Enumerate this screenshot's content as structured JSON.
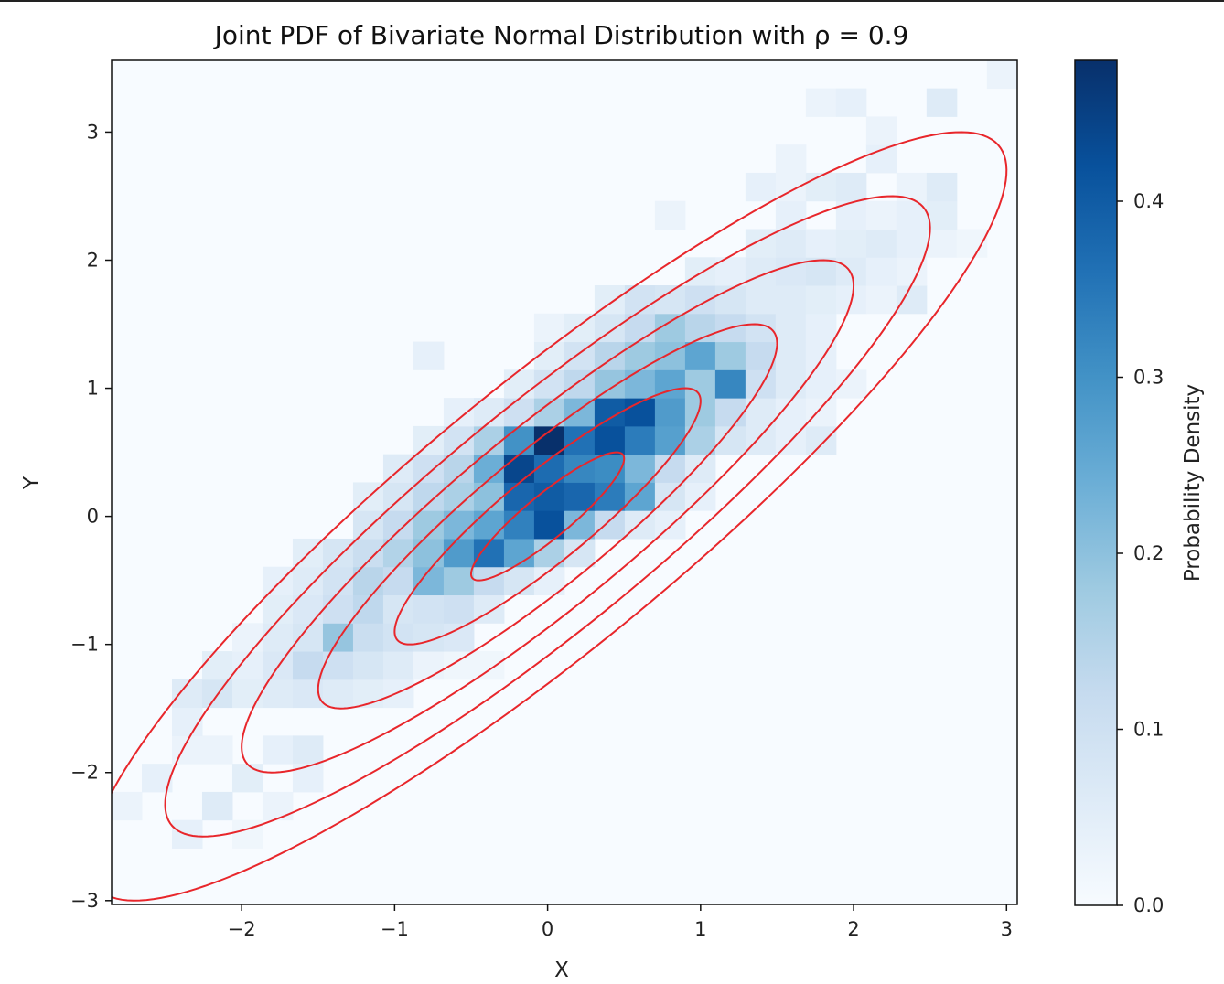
{
  "chart_data": {
    "type": "heatmap",
    "title": "Joint PDF of Bivariate Normal Distribution with ρ = 0.9",
    "xlabel": "X",
    "ylabel": "Y",
    "xlim": [
      -2.85,
      3.07
    ],
    "ylim": [
      -3.03,
      3.56
    ],
    "xticks": [
      -2,
      -1,
      0,
      1,
      2,
      3
    ],
    "xtick_labels": [
      "−2",
      "−1",
      "0",
      "1",
      "2",
      "3"
    ],
    "yticks": [
      -3,
      -2,
      -1,
      0,
      1,
      2,
      3
    ],
    "ytick_labels": [
      "−3",
      "−2",
      "−1",
      "0",
      "1",
      "2",
      "3"
    ],
    "grid": false,
    "histogram": {
      "bins": 30,
      "x_edges_start": -2.85,
      "x_bin_width": 0.1973,
      "y_edges_start": -3.03,
      "y_bin_width": 0.2197,
      "cells": [
        [
          0,
          3,
          0.03
        ],
        [
          1,
          4,
          0.04
        ],
        [
          2,
          2,
          0.04
        ],
        [
          3,
          3,
          0.06
        ],
        [
          4,
          2,
          0.02
        ],
        [
          2,
          5,
          0.03
        ],
        [
          3,
          5,
          0.03
        ],
        [
          2,
          6,
          0.04
        ],
        [
          4,
          4,
          0.05
        ],
        [
          5,
          3,
          0.03
        ],
        [
          5,
          5,
          0.04
        ],
        [
          6,
          5,
          0.06
        ],
        [
          6,
          4,
          0.04
        ],
        [
          2,
          7,
          0.06
        ],
        [
          3,
          7,
          0.08
        ],
        [
          4,
          7,
          0.05
        ],
        [
          5,
          7,
          0.06
        ],
        [
          6,
          7,
          0.07
        ],
        [
          7,
          7,
          0.06
        ],
        [
          8,
          7,
          0.05
        ],
        [
          9,
          7,
          0.04
        ],
        [
          3,
          8,
          0.05
        ],
        [
          4,
          8,
          0.04
        ],
        [
          5,
          8,
          0.07
        ],
        [
          6,
          8,
          0.12
        ],
        [
          7,
          8,
          0.1
        ],
        [
          8,
          8,
          0.08
        ],
        [
          9,
          8,
          0.06
        ],
        [
          10,
          8,
          0.03
        ],
        [
          11,
          8,
          0.02
        ],
        [
          12,
          8,
          0.02
        ],
        [
          4,
          9,
          0.03
        ],
        [
          5,
          9,
          0.06
        ],
        [
          6,
          9,
          0.08
        ],
        [
          7,
          9,
          0.19
        ],
        [
          8,
          9,
          0.11
        ],
        [
          9,
          9,
          0.09
        ],
        [
          10,
          9,
          0.08
        ],
        [
          11,
          9,
          0.07
        ],
        [
          5,
          10,
          0.05
        ],
        [
          6,
          10,
          0.07
        ],
        [
          7,
          10,
          0.1
        ],
        [
          8,
          10,
          0.13
        ],
        [
          9,
          10,
          0.08
        ],
        [
          10,
          10,
          0.09
        ],
        [
          11,
          10,
          0.1
        ],
        [
          12,
          10,
          0.06
        ],
        [
          5,
          11,
          0.04
        ],
        [
          6,
          11,
          0.06
        ],
        [
          7,
          11,
          0.09
        ],
        [
          8,
          11,
          0.14
        ],
        [
          9,
          11,
          0.12
        ],
        [
          10,
          11,
          0.22
        ],
        [
          11,
          11,
          0.18
        ],
        [
          12,
          11,
          0.12
        ],
        [
          13,
          11,
          0.08
        ],
        [
          14,
          11,
          0.04
        ],
        [
          6,
          12,
          0.05
        ],
        [
          7,
          12,
          0.08
        ],
        [
          8,
          12,
          0.11
        ],
        [
          9,
          12,
          0.15
        ],
        [
          10,
          12,
          0.2
        ],
        [
          11,
          12,
          0.28
        ],
        [
          12,
          12,
          0.36
        ],
        [
          13,
          12,
          0.26
        ],
        [
          14,
          12,
          0.16
        ],
        [
          15,
          12,
          0.08
        ],
        [
          8,
          13,
          0.08
        ],
        [
          9,
          13,
          0.12
        ],
        [
          10,
          13,
          0.18
        ],
        [
          11,
          13,
          0.22
        ],
        [
          12,
          13,
          0.26
        ],
        [
          13,
          13,
          0.33
        ],
        [
          14,
          13,
          0.42
        ],
        [
          15,
          13,
          0.22
        ],
        [
          16,
          13,
          0.12
        ],
        [
          17,
          13,
          0.06
        ],
        [
          18,
          13,
          0.04
        ],
        [
          8,
          14,
          0.05
        ],
        [
          9,
          14,
          0.08
        ],
        [
          10,
          14,
          0.13
        ],
        [
          11,
          14,
          0.16
        ],
        [
          12,
          14,
          0.2
        ],
        [
          13,
          14,
          0.38
        ],
        [
          14,
          14,
          0.4
        ],
        [
          15,
          14,
          0.38
        ],
        [
          16,
          14,
          0.34
        ],
        [
          17,
          14,
          0.26
        ],
        [
          18,
          14,
          0.08
        ],
        [
          19,
          14,
          0.04
        ],
        [
          9,
          15,
          0.06
        ],
        [
          10,
          15,
          0.1
        ],
        [
          11,
          15,
          0.14
        ],
        [
          12,
          15,
          0.24
        ],
        [
          13,
          15,
          0.44
        ],
        [
          14,
          15,
          0.37
        ],
        [
          15,
          15,
          0.32
        ],
        [
          16,
          15,
          0.31
        ],
        [
          17,
          15,
          0.22
        ],
        [
          18,
          15,
          0.12
        ],
        [
          19,
          15,
          0.06
        ],
        [
          10,
          16,
          0.05
        ],
        [
          11,
          16,
          0.09
        ],
        [
          12,
          16,
          0.16
        ],
        [
          13,
          16,
          0.3
        ],
        [
          14,
          16,
          0.48
        ],
        [
          15,
          16,
          0.36
        ],
        [
          16,
          16,
          0.42
        ],
        [
          17,
          16,
          0.34
        ],
        [
          18,
          16,
          0.27
        ],
        [
          19,
          16,
          0.16
        ],
        [
          20,
          16,
          0.08
        ],
        [
          21,
          16,
          0.06
        ],
        [
          22,
          16,
          0.04
        ],
        [
          23,
          16,
          0.06
        ],
        [
          11,
          17,
          0.04
        ],
        [
          12,
          17,
          0.06
        ],
        [
          13,
          17,
          0.1
        ],
        [
          14,
          17,
          0.16
        ],
        [
          15,
          17,
          0.22
        ],
        [
          16,
          17,
          0.4
        ],
        [
          17,
          17,
          0.42
        ],
        [
          18,
          17,
          0.28
        ],
        [
          19,
          17,
          0.18
        ],
        [
          20,
          17,
          0.12
        ],
        [
          21,
          17,
          0.06
        ],
        [
          22,
          17,
          0.04
        ],
        [
          23,
          17,
          0.03
        ],
        [
          13,
          18,
          0.05
        ],
        [
          14,
          18,
          0.09
        ],
        [
          15,
          18,
          0.13
        ],
        [
          16,
          18,
          0.19
        ],
        [
          17,
          18,
          0.22
        ],
        [
          18,
          18,
          0.26
        ],
        [
          19,
          18,
          0.18
        ],
        [
          20,
          18,
          0.32
        ],
        [
          21,
          18,
          0.1
        ],
        [
          22,
          18,
          0.06
        ],
        [
          23,
          18,
          0.04
        ],
        [
          24,
          18,
          0.03
        ],
        [
          10,
          19,
          0.04
        ],
        [
          14,
          19,
          0.05
        ],
        [
          15,
          19,
          0.09
        ],
        [
          16,
          19,
          0.14
        ],
        [
          17,
          19,
          0.18
        ],
        [
          18,
          19,
          0.2
        ],
        [
          19,
          19,
          0.26
        ],
        [
          20,
          19,
          0.18
        ],
        [
          21,
          19,
          0.12
        ],
        [
          22,
          19,
          0.06
        ],
        [
          23,
          19,
          0.04
        ],
        [
          14,
          20,
          0.03
        ],
        [
          15,
          20,
          0.05
        ],
        [
          16,
          20,
          0.08
        ],
        [
          17,
          20,
          0.12
        ],
        [
          18,
          20,
          0.18
        ],
        [
          19,
          20,
          0.14
        ],
        [
          20,
          20,
          0.12
        ],
        [
          21,
          20,
          0.09
        ],
        [
          22,
          20,
          0.06
        ],
        [
          23,
          20,
          0.04
        ],
        [
          16,
          21,
          0.05
        ],
        [
          17,
          21,
          0.09
        ],
        [
          18,
          21,
          0.08
        ],
        [
          19,
          21,
          0.1
        ],
        [
          20,
          21,
          0.08
        ],
        [
          21,
          21,
          0.06
        ],
        [
          22,
          21,
          0.06
        ],
        [
          23,
          21,
          0.05
        ],
        [
          24,
          21,
          0.04
        ],
        [
          25,
          21,
          0.03
        ],
        [
          26,
          21,
          0.06
        ],
        [
          19,
          22,
          0.05
        ],
        [
          20,
          22,
          0.04
        ],
        [
          21,
          22,
          0.06
        ],
        [
          22,
          22,
          0.07
        ],
        [
          23,
          22,
          0.08
        ],
        [
          24,
          22,
          0.06
        ],
        [
          25,
          22,
          0.04
        ],
        [
          26,
          22,
          0.03
        ],
        [
          21,
          23,
          0.05
        ],
        [
          22,
          23,
          0.06
        ],
        [
          23,
          23,
          0.04
        ],
        [
          24,
          23,
          0.05
        ],
        [
          25,
          23,
          0.06
        ],
        [
          26,
          23,
          0.04
        ],
        [
          27,
          23,
          0.03
        ],
        [
          28,
          23,
          0.02
        ],
        [
          18,
          24,
          0.03
        ],
        [
          22,
          24,
          0.04
        ],
        [
          24,
          24,
          0.04
        ],
        [
          25,
          24,
          0.03
        ],
        [
          26,
          24,
          0.04
        ],
        [
          27,
          24,
          0.05
        ],
        [
          21,
          25,
          0.04
        ],
        [
          22,
          25,
          0.03
        ],
        [
          23,
          25,
          0.05
        ],
        [
          24,
          25,
          0.06
        ],
        [
          26,
          25,
          0.03
        ],
        [
          27,
          25,
          0.06
        ],
        [
          22,
          26,
          0.03
        ],
        [
          25,
          26,
          0.04
        ],
        [
          25,
          27,
          0.03
        ],
        [
          23,
          28,
          0.03
        ],
        [
          24,
          28,
          0.04
        ],
        [
          27,
          28,
          0.06
        ],
        [
          29,
          29,
          0.03
        ]
      ]
    },
    "contours": {
      "color": "#e8262b",
      "distribution": {
        "mean": [
          0,
          0
        ],
        "rho": 0.9
      },
      "mahalanobis_levels": [
        0.5,
        1.0,
        1.5,
        2.0,
        2.5,
        3.0
      ]
    },
    "colorbar": {
      "label": "Probability Density",
      "vmin": 0.0,
      "vmax": 0.48,
      "ticks": [
        0.0,
        0.1,
        0.2,
        0.3,
        0.4
      ],
      "tick_labels": [
        "0.0",
        "0.1",
        "0.2",
        "0.3",
        "0.4"
      ],
      "colormap": "Blues",
      "colors": [
        "#f7fbff",
        "#deebf7",
        "#c6dbef",
        "#9ecae1",
        "#6baed6",
        "#4292c6",
        "#2171b5",
        "#08519c",
        "#08306b"
      ]
    }
  }
}
